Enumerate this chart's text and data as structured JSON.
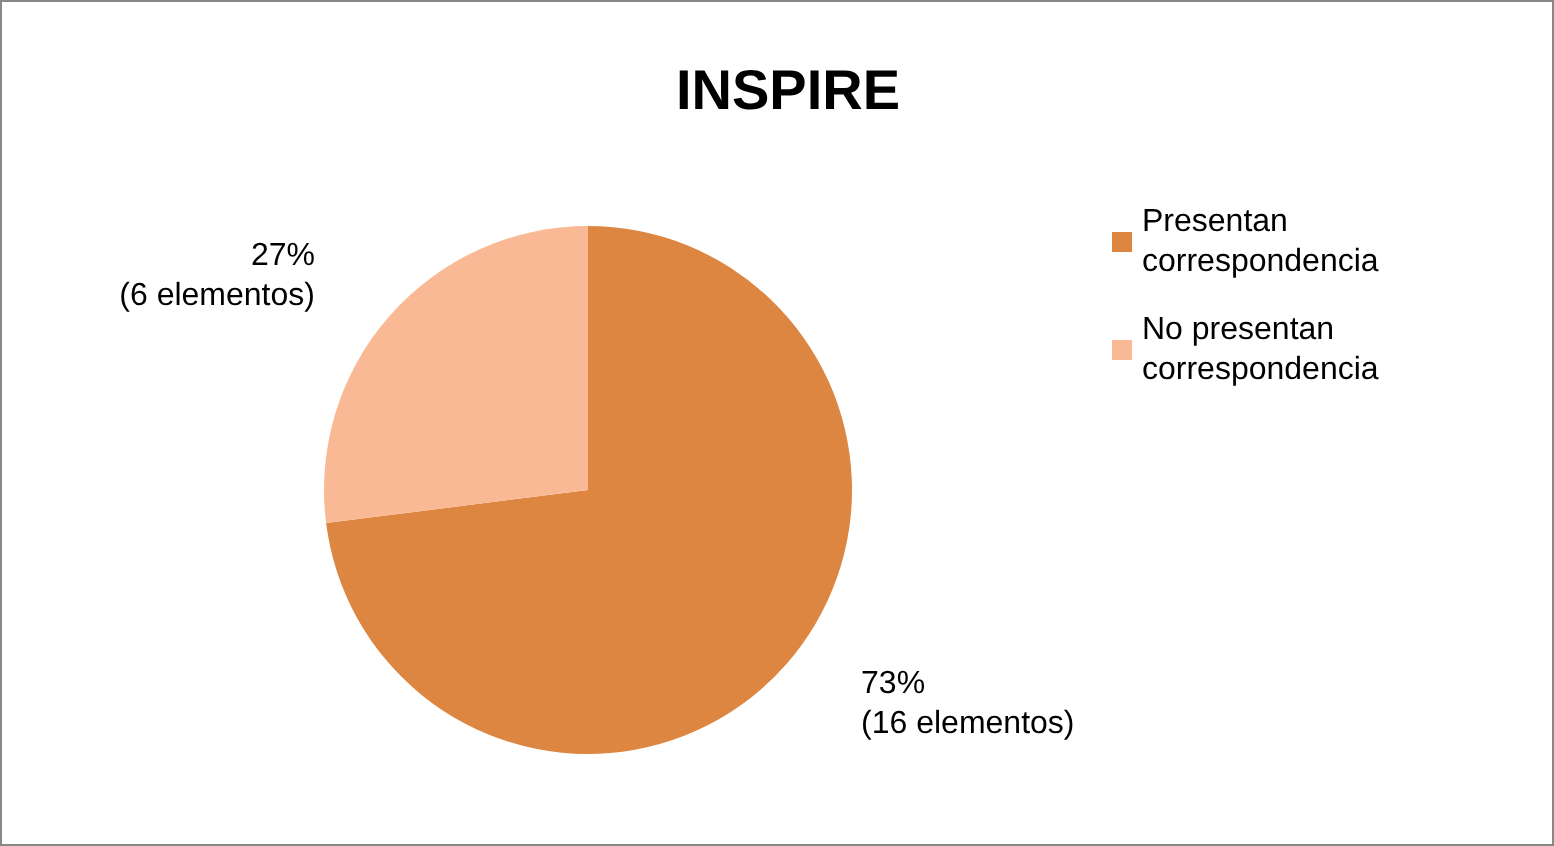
{
  "chart_data": {
    "type": "pie",
    "title": "INSPIRE",
    "categories": [
      "Presentan correspondencia",
      "No presentan correspondencia"
    ],
    "values": [
      73,
      27
    ],
    "colors": [
      "#dd8642",
      "#f9b994"
    ],
    "value_labels": [
      "73%\n(16 elementos)",
      "27%\n(6 elementos)"
    ],
    "legend": "right"
  }
}
